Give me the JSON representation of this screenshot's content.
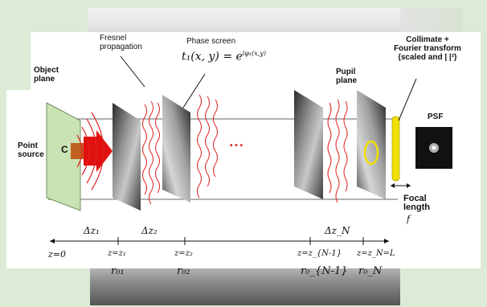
{
  "labels": {
    "object_plane": "Object\nplane",
    "point_source": "Point\nsource",
    "fresnel": "Fresnel\npropagation",
    "phase_screen": "Phase screen",
    "pupil_plane": "Pupil\nplane",
    "collimate": "Collimate +\nFourier transform\n(scaled and | |²)",
    "psf": "PSF",
    "focal_length": "Focal\nlength",
    "focal_symbol": "f",
    "dots": "• • •",
    "source_mark": "C"
  },
  "math": {
    "phase_expr": "t₁(x, y) = e",
    "phase_exp": "iφ₁(x,y)",
    "dz1": "Δz₁",
    "dz2": "Δz₂",
    "dzN": "Δz_N",
    "z0": "z=0",
    "z1": "z=z₁",
    "z2": "z=z₂",
    "zN1": "z=z_{N-1}",
    "zN": "z=z_N=L",
    "r01": "r₀₁",
    "r02": "r₀₂",
    "r0N1": "r₀_{N-1}",
    "r0N": "r₀_N"
  },
  "colors": {
    "background": "#ddebd6",
    "waves": "#e02020",
    "arrow": "#e01010",
    "source_block": "#c06020",
    "object_plane": "#c9e3b5",
    "pupil_ring": "#f0e000"
  }
}
